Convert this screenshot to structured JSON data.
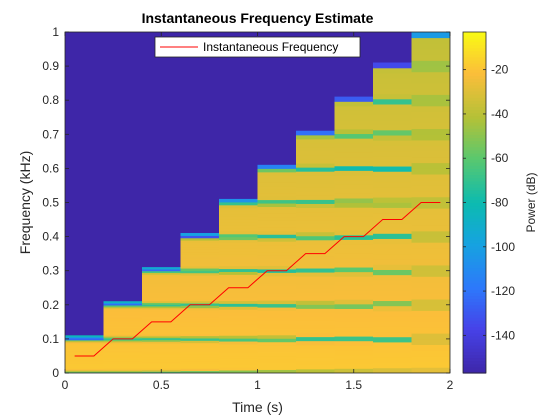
{
  "chart_data": {
    "type": "heatmap",
    "title": "Instantaneous Frequency Estimate",
    "xlabel": "Time (s)",
    "ylabel": "Frequency (kHz)",
    "xlim": [
      0,
      2
    ],
    "ylim": [
      0,
      1
    ],
    "xticks": [
      0,
      0.5,
      1,
      1.5,
      2
    ],
    "xtick_labels": [
      "0",
      "0.5",
      "1",
      "1.5",
      "2"
    ],
    "yticks": [
      0,
      0.1,
      0.2,
      0.3,
      0.4,
      0.5,
      0.6,
      0.7,
      0.8,
      0.9,
      1
    ],
    "ytick_labels": [
      "0",
      "0.1",
      "0.2",
      "0.3",
      "0.4",
      "0.5",
      "0.6",
      "0.7",
      "0.8",
      "0.9",
      "1"
    ],
    "grid": false,
    "legend": {
      "position": "top",
      "entries": [
        "Instantaneous Frequency"
      ]
    },
    "colorbar": {
      "label": "Power (dB)",
      "clim": [
        -157,
        -3
      ],
      "ticks": [
        -20,
        -40,
        -60,
        -80,
        -100,
        -120,
        -140
      ],
      "tick_labels": [
        "-20",
        "-40",
        "-60",
        "-80",
        "-100",
        "-120",
        "-140"
      ],
      "colormap": "parula"
    },
    "spectrogram": {
      "time_segments": [
        {
          "t_start": 0.0,
          "t_end": 0.2,
          "max_freq": 0.11
        },
        {
          "t_start": 0.2,
          "t_end": 0.4,
          "max_freq": 0.21
        },
        {
          "t_start": 0.4,
          "t_end": 0.6,
          "max_freq": 0.31
        },
        {
          "t_start": 0.6,
          "t_end": 0.8,
          "max_freq": 0.41
        },
        {
          "t_start": 0.8,
          "t_end": 1.0,
          "max_freq": 0.51
        },
        {
          "t_start": 1.0,
          "t_end": 1.2,
          "max_freq": 0.61
        },
        {
          "t_start": 1.2,
          "t_end": 1.4,
          "max_freq": 0.71
        },
        {
          "t_start": 1.4,
          "t_end": 1.6,
          "max_freq": 0.81
        },
        {
          "t_start": 1.6,
          "t_end": 1.8,
          "max_freq": 0.91
        },
        {
          "t_start": 1.8,
          "t_end": 2.0,
          "max_freq": 1.0
        }
      ],
      "harmonic_spacing": 0.1,
      "background_power_db": -157
    },
    "series": [
      {
        "name": "Instantaneous Frequency",
        "color": "#ff0000",
        "x": [
          0.05,
          0.15,
          0.25,
          0.35,
          0.45,
          0.55,
          0.65,
          0.75,
          0.85,
          0.95,
          1.05,
          1.15,
          1.25,
          1.35,
          1.45,
          1.55,
          1.65,
          1.75,
          1.85,
          1.95
        ],
        "y": [
          0.05,
          0.05,
          0.1,
          0.1,
          0.15,
          0.15,
          0.2,
          0.2,
          0.25,
          0.25,
          0.3,
          0.3,
          0.35,
          0.35,
          0.4,
          0.4,
          0.45,
          0.45,
          0.5,
          0.5
        ]
      }
    ]
  }
}
